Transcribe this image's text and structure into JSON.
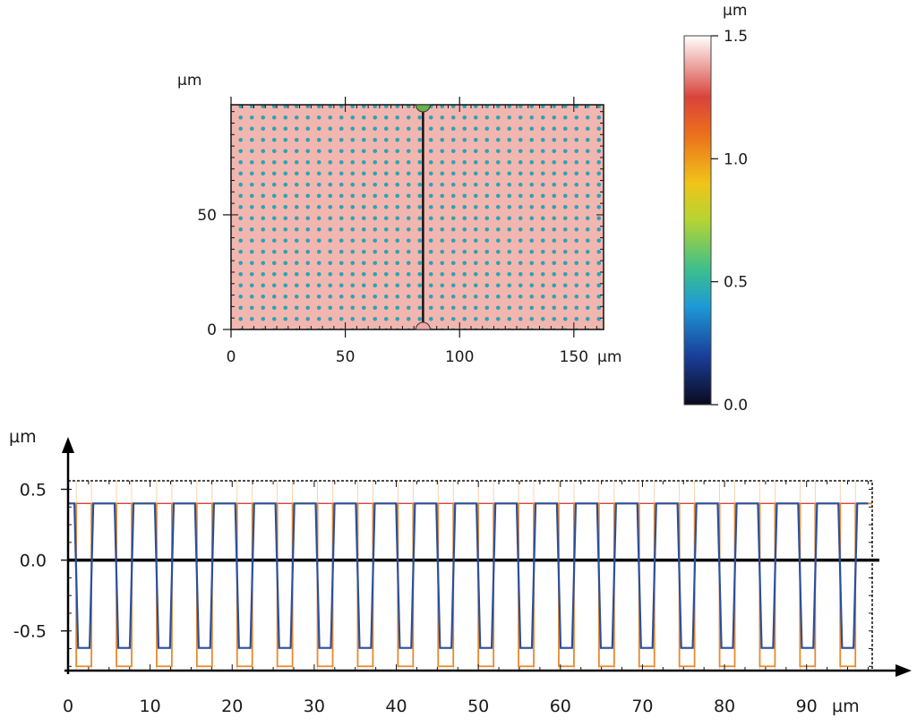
{
  "chart_data": [
    {
      "type": "heatmap",
      "title": "",
      "x_unit": "µm",
      "y_unit": "µm",
      "xlim": [
        0,
        163
      ],
      "ylim": [
        0,
        98
      ],
      "x_ticks": [
        0,
        50,
        100,
        150
      ],
      "y_ticks": [
        0,
        50
      ],
      "x_tick_labels": [
        "0",
        "50",
        "100",
        "150"
      ],
      "y_tick_labels": [
        "0",
        "50"
      ],
      "background_height": 1.35,
      "dot_height": 0.45,
      "dot_pitch": 4.9,
      "grid": false,
      "profile_line_x": 84,
      "colors": {
        "background": "#f2b6b0",
        "dot": "#2aa3b4",
        "line": "#111111",
        "marker_top": "#6ab04c",
        "marker_bottom": "#f0a8a8"
      }
    },
    {
      "type": "colorbar",
      "unit": "µm",
      "range": [
        0.0,
        1.5
      ],
      "ticks": [
        0.0,
        0.5,
        1.0,
        1.5
      ],
      "tick_labels": [
        "0.0",
        "0.5",
        "1.0",
        "1.5"
      ],
      "stops": [
        {
          "v": 0.0,
          "c": "#0a0a1e"
        },
        {
          "v": 0.2,
          "c": "#1a3f9a"
        },
        {
          "v": 0.4,
          "c": "#1c9ad6"
        },
        {
          "v": 0.55,
          "c": "#3dbf8c"
        },
        {
          "v": 0.75,
          "c": "#b5d432"
        },
        {
          "v": 0.9,
          "c": "#f0c419"
        },
        {
          "v": 1.1,
          "c": "#ec6f1c"
        },
        {
          "v": 1.25,
          "c": "#d9433a"
        },
        {
          "v": 1.5,
          "c": "#ffffff"
        }
      ]
    },
    {
      "type": "line",
      "title": "",
      "x_unit": "µm",
      "y_unit": "µm",
      "xlim": [
        0,
        98
      ],
      "ylim": [
        -0.78,
        0.56
      ],
      "x_ticks": [
        0,
        10,
        20,
        30,
        40,
        50,
        60,
        70,
        80,
        90
      ],
      "x_tick_labels": [
        "0",
        "10",
        "20",
        "30",
        "40",
        "50",
        "60",
        "70",
        "80",
        "90"
      ],
      "y_ticks": [
        -0.5,
        0.0,
        0.5
      ],
      "y_tick_labels": [
        "-0.5",
        "0.0",
        "0.5"
      ],
      "grid": false,
      "zero_line": true,
      "profile": {
        "period": 4.9,
        "first_bottom_start": 1.0,
        "bottom_width": 1.85,
        "edge_width": 0.45,
        "top_value": 0.4,
        "bottom_value": -0.62,
        "x_end": 97.5,
        "color": "#2b4f9c"
      },
      "step_fit": {
        "top_value": 0.4,
        "bottom_value": -0.75,
        "color": "#e88a2c",
        "ref_top_color": "#d94040"
      }
    }
  ]
}
